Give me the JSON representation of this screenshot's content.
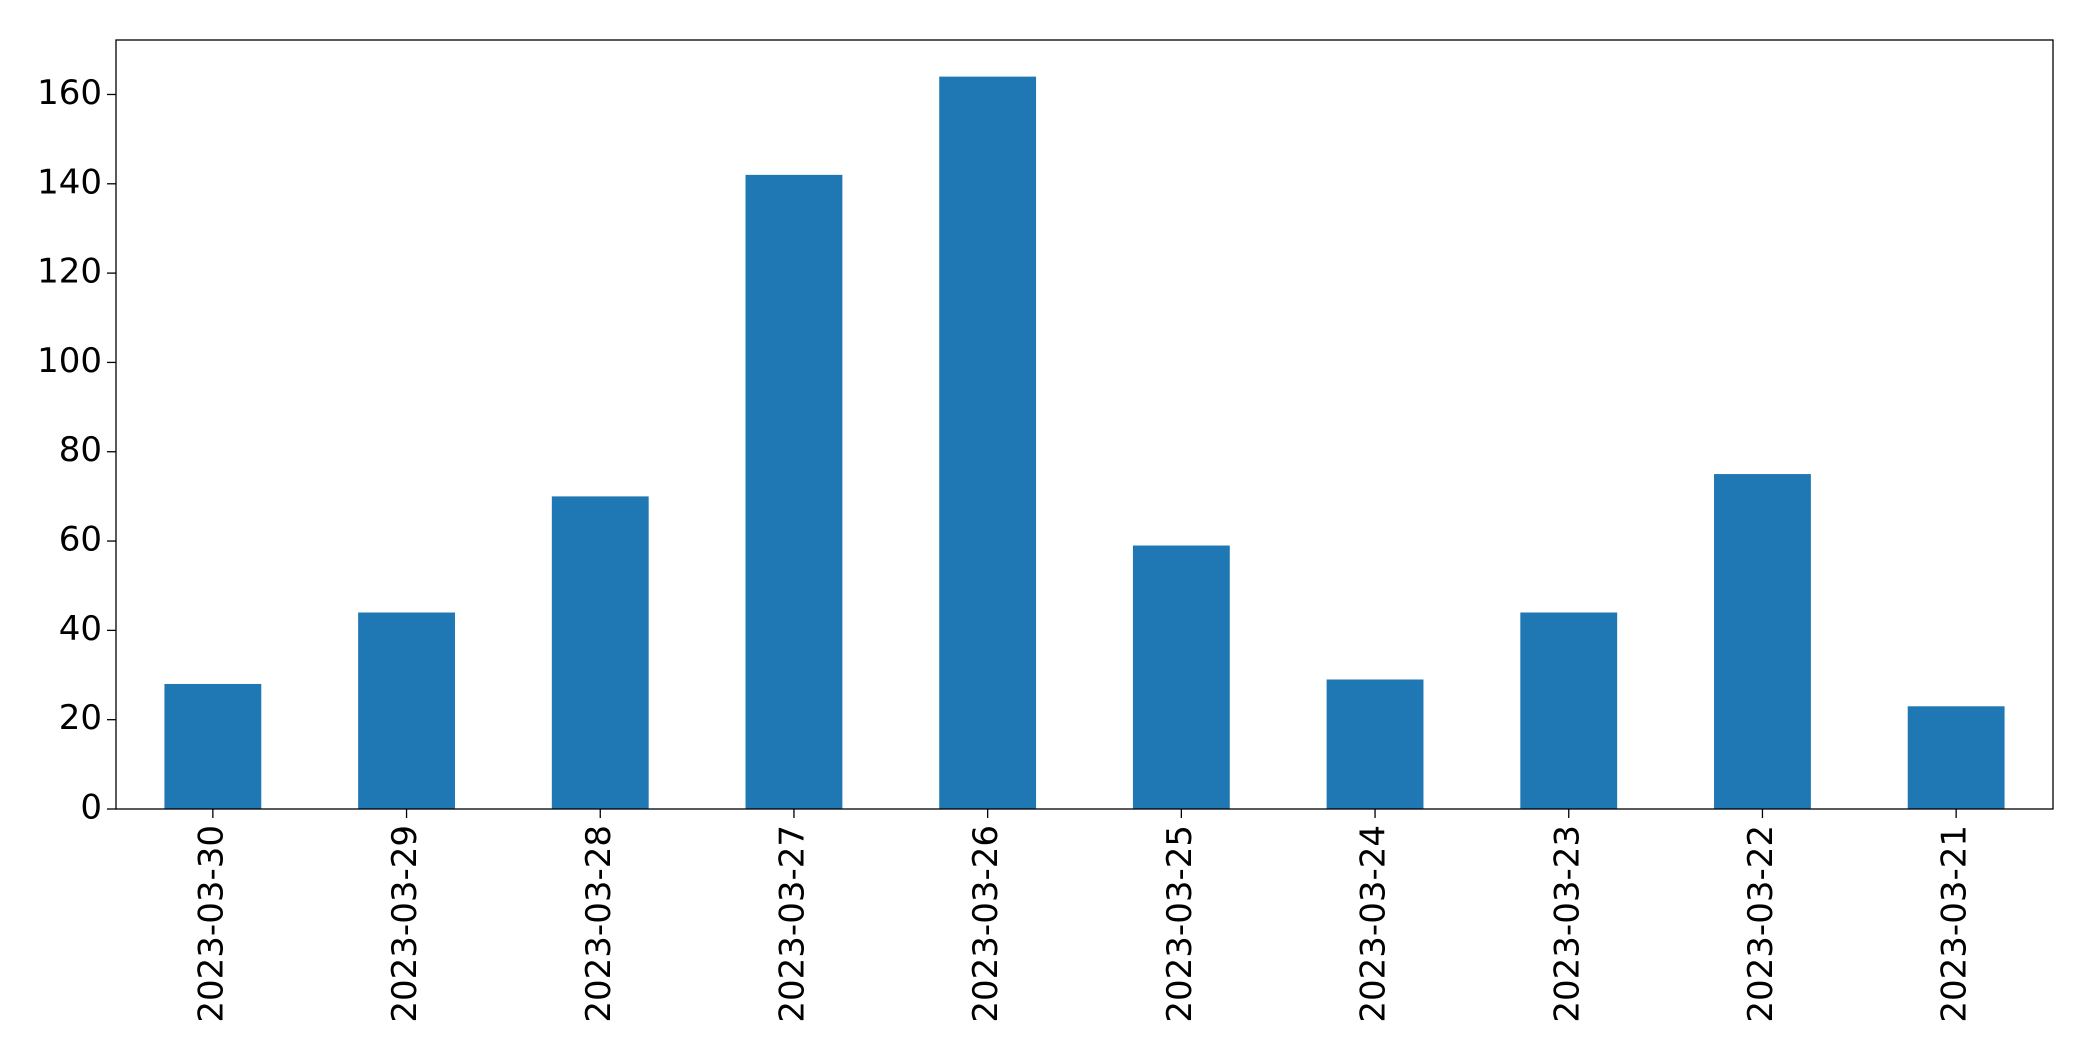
{
  "chart_data": {
    "type": "bar",
    "categories": [
      "2023-03-30",
      "2023-03-29",
      "2023-03-28",
      "2023-03-27",
      "2023-03-26",
      "2023-03-25",
      "2023-03-24",
      "2023-03-23",
      "2023-03-22",
      "2023-03-21"
    ],
    "values": [
      28,
      44,
      70,
      142,
      164,
      59,
      29,
      44,
      75,
      23
    ],
    "color": "#1f77b4",
    "ylim": [
      0,
      172.2
    ],
    "yticks": [
      0,
      20,
      40,
      60,
      80,
      100,
      120,
      140,
      160
    ],
    "grid": false
  }
}
